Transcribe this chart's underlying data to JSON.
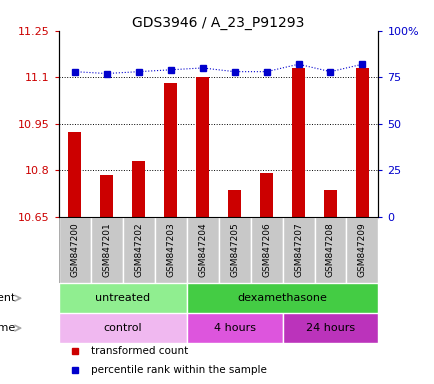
{
  "title": "GDS3946 / A_23_P91293",
  "samples": [
    "GSM847200",
    "GSM847201",
    "GSM847202",
    "GSM847203",
    "GSM847204",
    "GSM847205",
    "GSM847206",
    "GSM847207",
    "GSM847208",
    "GSM847209"
  ],
  "transformed_counts": [
    10.925,
    10.785,
    10.83,
    11.08,
    11.1,
    10.735,
    10.79,
    11.13,
    10.735,
    11.13
  ],
  "percentile_ranks": [
    78,
    77,
    78,
    79,
    80,
    78,
    78,
    82,
    78,
    82
  ],
  "ylim_left": [
    10.65,
    11.25
  ],
  "ylim_right": [
    0,
    100
  ],
  "yticks_left": [
    10.65,
    10.8,
    10.95,
    11.1,
    11.25
  ],
  "yticks_right": [
    0,
    25,
    50,
    75,
    100
  ],
  "ytick_labels_left": [
    "10.65",
    "10.8",
    "10.95",
    "11.1",
    "11.25"
  ],
  "ytick_labels_right": [
    "0",
    "25",
    "50",
    "75",
    "100%"
  ],
  "bar_color": "#cc0000",
  "dot_color": "#0000cc",
  "agent_groups": [
    {
      "label": "untreated",
      "start": 0,
      "end": 4,
      "color": "#90ee90"
    },
    {
      "label": "dexamethasone",
      "start": 4,
      "end": 10,
      "color": "#44cc44"
    }
  ],
  "time_groups": [
    {
      "label": "control",
      "start": 0,
      "end": 4,
      "color": "#f0b8f0"
    },
    {
      "label": "4 hours",
      "start": 4,
      "end": 7,
      "color": "#dd55dd"
    },
    {
      "label": "24 hours",
      "start": 7,
      "end": 10,
      "color": "#bb33bb"
    }
  ],
  "legend_items": [
    {
      "label": "transformed count",
      "color": "#cc0000"
    },
    {
      "label": "percentile rank within the sample",
      "color": "#0000cc"
    }
  ],
  "grid_color": "#555555",
  "bg_color": "#ffffff",
  "sample_bg": "#c8c8c8",
  "arrow_color": "#aaaaaa"
}
